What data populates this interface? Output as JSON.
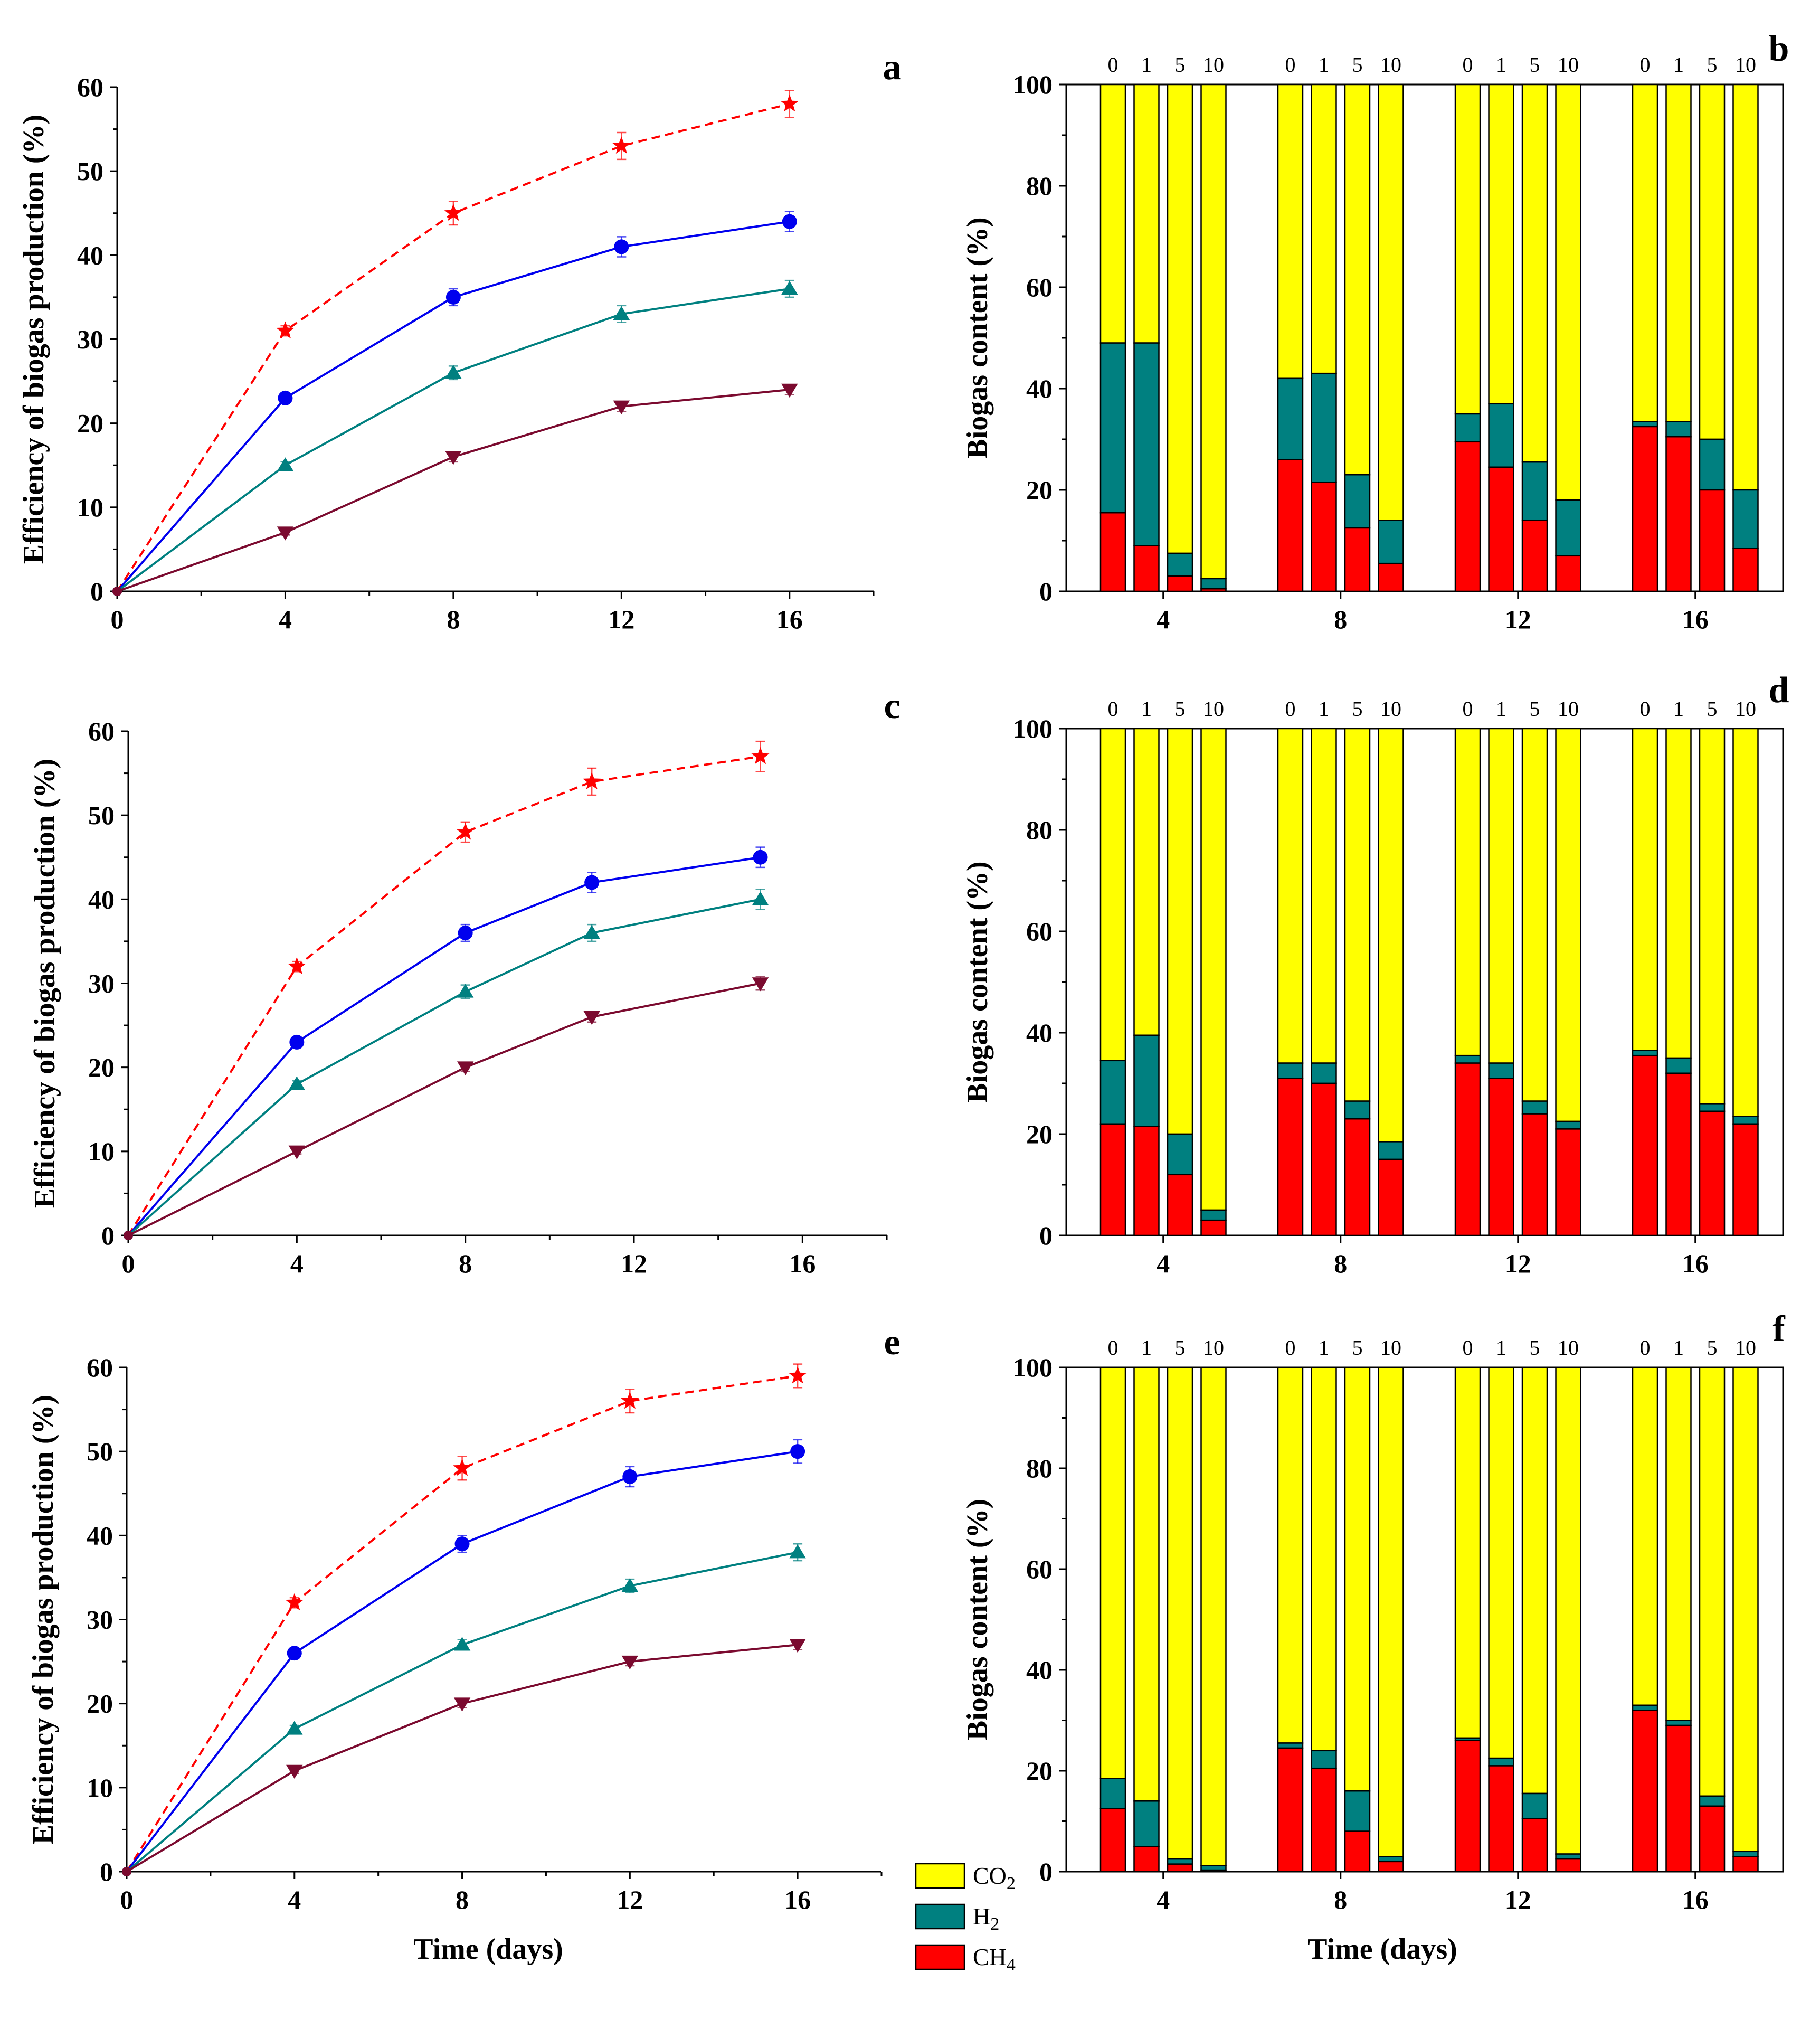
{
  "colors": {
    "red": "#ff0000",
    "blue": "#0000ee",
    "teal": "#008080",
    "maroon": "#7b0a2f",
    "co2": "#ffff00",
    "h2": "#008080",
    "ch4": "#ff0000"
  },
  "legend": {
    "co2": {
      "main": "CO",
      "sub": "2"
    },
    "h2": {
      "main": "H",
      "sub": "2"
    },
    "ch4": {
      "main": "CH",
      "sub": "4"
    }
  },
  "chart_data": [
    {
      "id": "a",
      "panel_label": "a",
      "type": "line",
      "ylabel": "Efficiency of biogas production (%)",
      "xlabel": "",
      "xlim": [
        0,
        18
      ],
      "ylim": [
        0,
        60
      ],
      "xticks": [
        "0",
        "4",
        "8",
        "12",
        "16"
      ],
      "yticks": [
        "0",
        "10",
        "20",
        "30",
        "40",
        "50",
        "60"
      ],
      "series": [
        {
          "name": "red",
          "x": [
            0,
            4,
            8,
            12,
            16
          ],
          "y": [
            0,
            31,
            45,
            53,
            58
          ],
          "err": [
            0,
            0.6,
            1.4,
            1.6,
            1.6
          ],
          "marker": "star",
          "style": "dashed"
        },
        {
          "name": "blue",
          "x": [
            0,
            4,
            8,
            12,
            16
          ],
          "y": [
            0,
            23,
            35,
            41,
            44
          ],
          "err": [
            0,
            0.5,
            1.0,
            1.2,
            1.2
          ],
          "marker": "circle",
          "style": "solid"
        },
        {
          "name": "teal",
          "x": [
            0,
            4,
            8,
            12,
            16
          ],
          "y": [
            0,
            15,
            26,
            33,
            36
          ],
          "err": [
            0,
            0.4,
            0.8,
            1.0,
            1.0
          ],
          "marker": "up",
          "style": "solid"
        },
        {
          "name": "maroon",
          "x": [
            0,
            4,
            8,
            12,
            16
          ],
          "y": [
            0,
            7,
            16,
            22,
            24
          ],
          "err": [
            0,
            0.3,
            0.6,
            0.6,
            0.6
          ],
          "marker": "down",
          "style": "solid"
        }
      ]
    },
    {
      "id": "b",
      "panel_label": "b",
      "type": "bar",
      "ylabel": "Biogas content (%)",
      "xlabel": "",
      "ylim": [
        0,
        100
      ],
      "yticks": [
        "0",
        "20",
        "40",
        "60",
        "80",
        "100"
      ],
      "categories": [
        "4",
        "8",
        "12",
        "16"
      ],
      "groups": [
        "0",
        "1",
        "5",
        "10"
      ],
      "ch4": [
        [
          15.5,
          9,
          3,
          0.5
        ],
        [
          26,
          21.5,
          12.5,
          5.5
        ],
        [
          29.5,
          24.5,
          14,
          7
        ],
        [
          32.5,
          30.5,
          20,
          8.5
        ]
      ],
      "h2": [
        [
          49,
          49,
          7.5,
          2.5
        ],
        [
          42,
          43,
          23,
          14
        ],
        [
          35,
          37,
          25.5,
          18
        ],
        [
          33.5,
          33.5,
          30,
          20
        ]
      ]
    },
    {
      "id": "c",
      "panel_label": "c",
      "type": "line",
      "ylabel": "Efficiency of biogas production (%)",
      "xlabel": "",
      "xlim": [
        0,
        18
      ],
      "ylim": [
        0,
        60
      ],
      "xticks": [
        "0",
        "4",
        "8",
        "12",
        "16"
      ],
      "yticks": [
        "0",
        "10",
        "20",
        "30",
        "40",
        "50",
        "60"
      ],
      "series": [
        {
          "name": "red",
          "x": [
            0,
            4,
            8,
            11,
            15
          ],
          "y": [
            0,
            32,
            48,
            54,
            57
          ],
          "err": [
            0,
            0.6,
            1.2,
            1.6,
            1.8
          ],
          "marker": "star",
          "style": "dashed"
        },
        {
          "name": "blue",
          "x": [
            0,
            4,
            8,
            11,
            15
          ],
          "y": [
            0,
            23,
            36,
            42,
            45
          ],
          "err": [
            0,
            0.5,
            1.0,
            1.2,
            1.2
          ],
          "marker": "circle",
          "style": "solid"
        },
        {
          "name": "teal",
          "x": [
            0,
            4,
            8,
            11,
            15
          ],
          "y": [
            0,
            18,
            29,
            36,
            40
          ],
          "err": [
            0,
            0.4,
            0.8,
            1.0,
            1.2
          ],
          "marker": "up",
          "style": "solid"
        },
        {
          "name": "maroon",
          "x": [
            0,
            4,
            8,
            11,
            15
          ],
          "y": [
            0,
            10,
            20,
            26,
            30
          ],
          "err": [
            0,
            0.3,
            0.5,
            0.6,
            0.8
          ],
          "marker": "down",
          "style": "solid"
        }
      ]
    },
    {
      "id": "d",
      "panel_label": "d",
      "type": "bar",
      "ylabel": "Biogas content (%)",
      "xlabel": "",
      "ylim": [
        0,
        100
      ],
      "yticks": [
        "0",
        "20",
        "40",
        "60",
        "80",
        "100"
      ],
      "categories": [
        "4",
        "8",
        "12",
        "16"
      ],
      "groups": [
        "0",
        "1",
        "5",
        "10"
      ],
      "ch4": [
        [
          22,
          21.5,
          12,
          3
        ],
        [
          31,
          30,
          23,
          15
        ],
        [
          34,
          31,
          24,
          21
        ],
        [
          35.5,
          32,
          24.5,
          22
        ]
      ],
      "h2": [
        [
          34.5,
          39.5,
          20,
          5
        ],
        [
          34,
          34,
          26.5,
          18.5
        ],
        [
          35.5,
          34,
          26.5,
          22.5
        ],
        [
          36.5,
          35,
          26,
          23.5
        ]
      ]
    },
    {
      "id": "e",
      "panel_label": "e",
      "type": "line",
      "ylabel": "Efficiency of biogas production (%)",
      "xlabel": "Time (days)",
      "xlim": [
        0,
        18
      ],
      "ylim": [
        0,
        60
      ],
      "xticks": [
        "0",
        "4",
        "8",
        "12",
        "16"
      ],
      "yticks": [
        "0",
        "10",
        "20",
        "30",
        "40",
        "50",
        "60"
      ],
      "series": [
        {
          "name": "red",
          "x": [
            0,
            4,
            8,
            12,
            16
          ],
          "y": [
            0,
            32,
            48,
            56,
            59
          ],
          "err": [
            0,
            0.6,
            1.4,
            1.4,
            1.4
          ],
          "marker": "star",
          "style": "dashed"
        },
        {
          "name": "blue",
          "x": [
            0,
            4,
            8,
            12,
            16
          ],
          "y": [
            0,
            26,
            39,
            47,
            50
          ],
          "err": [
            0,
            0.5,
            1.0,
            1.2,
            1.4
          ],
          "marker": "circle",
          "style": "solid"
        },
        {
          "name": "teal",
          "x": [
            0,
            4,
            8,
            12,
            16
          ],
          "y": [
            0,
            17,
            27,
            34,
            38
          ],
          "err": [
            0,
            0.4,
            0.6,
            0.8,
            1.0
          ],
          "marker": "up",
          "style": "solid"
        },
        {
          "name": "maroon",
          "x": [
            0,
            4,
            8,
            12,
            16
          ],
          "y": [
            0,
            12,
            20,
            25,
            27
          ],
          "err": [
            0,
            0.3,
            0.5,
            0.5,
            0.6
          ],
          "marker": "down",
          "style": "solid"
        }
      ]
    },
    {
      "id": "f",
      "panel_label": "f",
      "type": "bar",
      "ylabel": "Biogas content (%)",
      "xlabel": "Time (days)",
      "ylim": [
        0,
        100
      ],
      "yticks": [
        "0",
        "20",
        "40",
        "60",
        "80",
        "100"
      ],
      "categories": [
        "4",
        "8",
        "12",
        "16"
      ],
      "groups": [
        "0",
        "1",
        "5",
        "10"
      ],
      "ch4": [
        [
          12.5,
          5,
          1.5,
          0.3
        ],
        [
          24.5,
          20.5,
          8,
          2
        ],
        [
          26,
          21,
          10.5,
          2.5
        ],
        [
          32,
          29,
          13,
          3
        ]
      ],
      "h2": [
        [
          18.5,
          14,
          2.5,
          1.2
        ],
        [
          25.5,
          24,
          16,
          3
        ],
        [
          26.5,
          22.5,
          15.5,
          3.5
        ],
        [
          33,
          30,
          15,
          4
        ]
      ]
    }
  ]
}
